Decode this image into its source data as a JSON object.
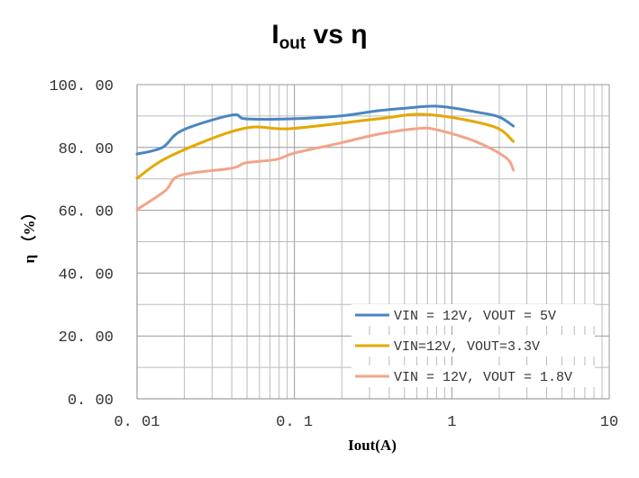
{
  "chart_data": {
    "type": "line",
    "title": {
      "main": "I",
      "sub": "out",
      "rest": " vs η"
    },
    "xlabel": "Iout(A)",
    "ylabel": "η （%）",
    "xscale": "log",
    "xlim": [
      0.01,
      10
    ],
    "ylim": [
      0,
      100
    ],
    "xticks": [
      {
        "v": 0.01,
        "label": "0. 01"
      },
      {
        "v": 0.1,
        "label": "0. 1"
      },
      {
        "v": 1,
        "label": "1"
      },
      {
        "v": 10,
        "label": "10"
      }
    ],
    "yticks": [
      {
        "v": 0,
        "label": "0. 00"
      },
      {
        "v": 20,
        "label": "20. 00"
      },
      {
        "v": 40,
        "label": "40. 00"
      },
      {
        "v": 60,
        "label": "60. 00"
      },
      {
        "v": 80,
        "label": "80. 00"
      },
      {
        "v": 100,
        "label": "100. 00"
      }
    ],
    "grid": true,
    "legend_position": "bottom-right",
    "series": [
      {
        "name": "VIN = 12V, VOUT = 5V",
        "color": "#4a86c0",
        "x": [
          0.01,
          0.0145,
          0.0193,
          0.04,
          0.049,
          0.095,
          0.195,
          0.34,
          0.51,
          0.83,
          1.5,
          2.0,
          2.46
        ],
        "y": [
          77.9,
          80,
          85.4,
          90.3,
          89.1,
          89.1,
          90,
          91.7,
          92.5,
          93.1,
          91.1,
          89.7,
          86.8
        ]
      },
      {
        "name": "VIN=12V, VOUT=3.3V",
        "color": "#e3a800",
        "x": [
          0.01,
          0.0165,
          0.047,
          0.095,
          0.34,
          0.69,
          1.8,
          2.46
        ],
        "y": [
          70.2,
          77.4,
          86,
          86,
          89.1,
          90.5,
          86.8,
          81.9
        ]
      },
      {
        "name": "VIN = 12V, VOUT = 1.8V",
        "color": "#f2a48a",
        "x": [
          0.01,
          0.0151,
          0.0188,
          0.04,
          0.049,
          0.077,
          0.1,
          0.195,
          0.34,
          0.6,
          0.79,
          1.4,
          2.2,
          2.46
        ],
        "y": [
          60.2,
          66.2,
          71.1,
          73.4,
          75.1,
          76.2,
          78.2,
          81.4,
          84.2,
          86,
          85.7,
          82,
          76.8,
          72.8
        ]
      }
    ]
  }
}
